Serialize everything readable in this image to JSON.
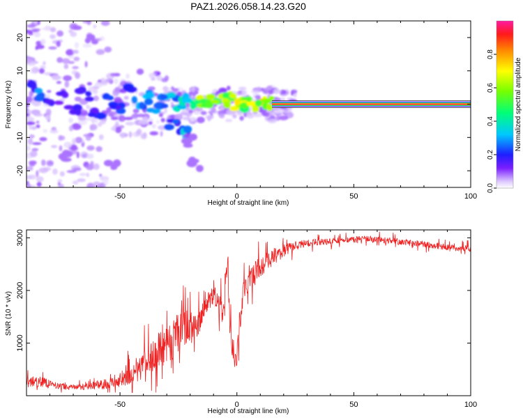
{
  "figure_title": "PAZ1.2026.058.14.23.G20",
  "colors": {
    "snr_line": "#ee2222",
    "ridge_core": "#ff1a5c",
    "axis": "#000000"
  },
  "chart_data": [
    {
      "type": "heatmap",
      "name": "spectrogram",
      "title": "PAZ1.2026.058.14.23.G20",
      "xlabel": "Height of straight line (km)",
      "ylabel": "Frequency (Hz)",
      "xlim": [
        -90,
        100
      ],
      "ylim": [
        -25,
        25
      ],
      "x_ticks": [
        -50,
        0,
        50,
        100
      ],
      "x_tick_labels": [
        "-50",
        "0",
        "50",
        "100"
      ],
      "y_ticks": [
        -20,
        -10,
        0,
        10,
        20
      ],
      "y_tick_labels": [
        "-20",
        "-10",
        "0",
        "10",
        "20"
      ],
      "colorbar": {
        "label": "Normalized spectral amplitude",
        "range": [
          0,
          1
        ],
        "ticks": [
          0.0,
          0.2,
          0.4,
          0.6,
          0.8
        ],
        "tick_labels": [
          "0.0",
          "0.2",
          "0.4",
          "0.6",
          "0.8"
        ],
        "colormap": "rainbow (white to magenta)",
        "stops": [
          {
            "v": 0.0,
            "color": "#ffffff"
          },
          {
            "v": 0.04,
            "color": "#dcc8ff"
          },
          {
            "v": 0.12,
            "color": "#7a1eff"
          },
          {
            "v": 0.2,
            "color": "#1e1eff"
          },
          {
            "v": 0.32,
            "color": "#00c8ff"
          },
          {
            "v": 0.45,
            "color": "#00ff78"
          },
          {
            "v": 0.58,
            "color": "#78ff00"
          },
          {
            "v": 0.7,
            "color": "#ffff00"
          },
          {
            "v": 0.82,
            "color": "#ff8c00"
          },
          {
            "v": 0.92,
            "color": "#ff1a1a"
          },
          {
            "v": 1.0,
            "color": "#ff1aa0"
          }
        ]
      },
      "ridge": {
        "description": "strong narrow ridge near 0 Hz from ~15 km to 100 km",
        "x_start": 15,
        "x_end": 100,
        "frequency_hz": 0.0,
        "amplitude": 1.0
      },
      "clusters": [
        {
          "x": -86,
          "f": 5,
          "a": 0.25
        },
        {
          "x": -85,
          "f": 3,
          "a": 0.3
        },
        {
          "x": -80,
          "f": 0,
          "a": 0.2
        },
        {
          "x": -75,
          "f": 2,
          "a": 0.18
        },
        {
          "x": -70,
          "f": -1,
          "a": 0.2
        },
        {
          "x": -65,
          "f": 3,
          "a": 0.18
        },
        {
          "x": -60,
          "f": -2,
          "a": 0.2
        },
        {
          "x": -55,
          "f": 1,
          "a": 0.22
        },
        {
          "x": -50,
          "f": -1,
          "a": 0.25
        },
        {
          "x": -45,
          "f": 4,
          "a": 0.25
        },
        {
          "x": -42,
          "f": 0,
          "a": 0.3
        },
        {
          "x": -38,
          "f": 2,
          "a": 0.32
        },
        {
          "x": -35,
          "f": -1,
          "a": 0.3
        },
        {
          "x": -30,
          "f": 1,
          "a": 0.35
        },
        {
          "x": -27,
          "f": 2,
          "a": 0.35
        },
        {
          "x": -25,
          "f": 0,
          "a": 0.38
        },
        {
          "x": -22,
          "f": 1,
          "a": 0.4
        },
        {
          "x": -20,
          "f": 1,
          "a": 0.45
        },
        {
          "x": -17,
          "f": 1,
          "a": 0.5
        },
        {
          "x": -15,
          "f": 1,
          "a": 0.65
        },
        {
          "x": -12,
          "f": 1,
          "a": 0.6
        },
        {
          "x": -8,
          "f": 1.5,
          "a": 0.65
        },
        {
          "x": -5,
          "f": 2,
          "a": 0.75
        },
        {
          "x": -3,
          "f": 1,
          "a": 0.65
        },
        {
          "x": 0,
          "f": 0,
          "a": 0.75
        },
        {
          "x": 3,
          "f": 0,
          "a": 0.7
        },
        {
          "x": 7,
          "f": 0,
          "a": 0.7
        },
        {
          "x": 10,
          "f": 1,
          "a": 0.75
        },
        {
          "x": 13,
          "f": 0.5,
          "a": 0.8
        },
        {
          "x": -27,
          "f": -6,
          "a": 0.25
        },
        {
          "x": -23,
          "f": -8,
          "a": 0.22
        },
        {
          "x": -22,
          "f": -9,
          "a": 0.35
        },
        {
          "x": -20,
          "f": -11,
          "a": 0.1
        },
        {
          "x": -74,
          "f": -16,
          "a": 0.06
        },
        {
          "x": -62,
          "f": 20,
          "a": 0.06
        },
        {
          "x": -53,
          "f": -19,
          "a": 0.06
        },
        {
          "x": -18,
          "f": -18,
          "a": 0.05
        }
      ]
    },
    {
      "type": "line",
      "name": "snr",
      "xlabel": "Height of straight line (km)",
      "ylabel": "SNR (10 * v/v)",
      "xlim": [
        -90,
        100
      ],
      "ylim": [
        0,
        3150
      ],
      "x_ticks": [
        -50,
        0,
        50,
        100
      ],
      "x_tick_labels": [
        "-50",
        "0",
        "50",
        "100"
      ],
      "y_ticks": [
        1000,
        2000,
        3000
      ],
      "y_tick_labels": [
        "1000",
        "2000",
        "3000"
      ],
      "series": [
        {
          "name": "SNR",
          "x": [
            -90,
            -85,
            -80,
            -75,
            -70,
            -65,
            -60,
            -55,
            -50,
            -45,
            -40,
            -35,
            -30,
            -27,
            -24,
            -21,
            -18,
            -16,
            -14,
            -12,
            -10,
            -8,
            -6,
            -4,
            -3,
            -2,
            -1,
            0,
            1,
            2,
            3,
            5,
            8,
            10,
            13,
            16,
            20,
            25,
            30,
            35,
            40,
            45,
            50,
            55,
            60,
            65,
            70,
            75,
            80,
            85,
            90,
            95,
            100
          ],
          "y": [
            250,
            280,
            220,
            180,
            160,
            170,
            200,
            240,
            300,
            420,
            600,
            800,
            950,
            1100,
            1250,
            1300,
            1350,
            1400,
            1650,
            1800,
            1900,
            1850,
            1500,
            2700,
            1300,
            900,
            700,
            750,
            1300,
            1700,
            2000,
            2200,
            2350,
            2450,
            2550,
            2650,
            2750,
            2850,
            2900,
            2920,
            2930,
            2950,
            2970,
            2980,
            2960,
            2950,
            2920,
            2900,
            2880,
            2850,
            2820,
            2800,
            2800
          ],
          "noise": [
            150,
            180,
            130,
            100,
            90,
            100,
            130,
            180,
            250,
            350,
            450,
            550,
            600,
            650,
            650,
            600,
            500,
            400,
            300,
            300,
            300,
            350,
            450,
            500,
            400,
            350,
            300,
            300,
            400,
            450,
            500,
            450,
            400,
            350,
            300,
            250,
            200,
            150,
            120,
            110,
            100,
            100,
            100,
            100,
            100,
            100,
            100,
            100,
            100,
            100,
            100,
            100,
            100
          ]
        }
      ]
    }
  ]
}
